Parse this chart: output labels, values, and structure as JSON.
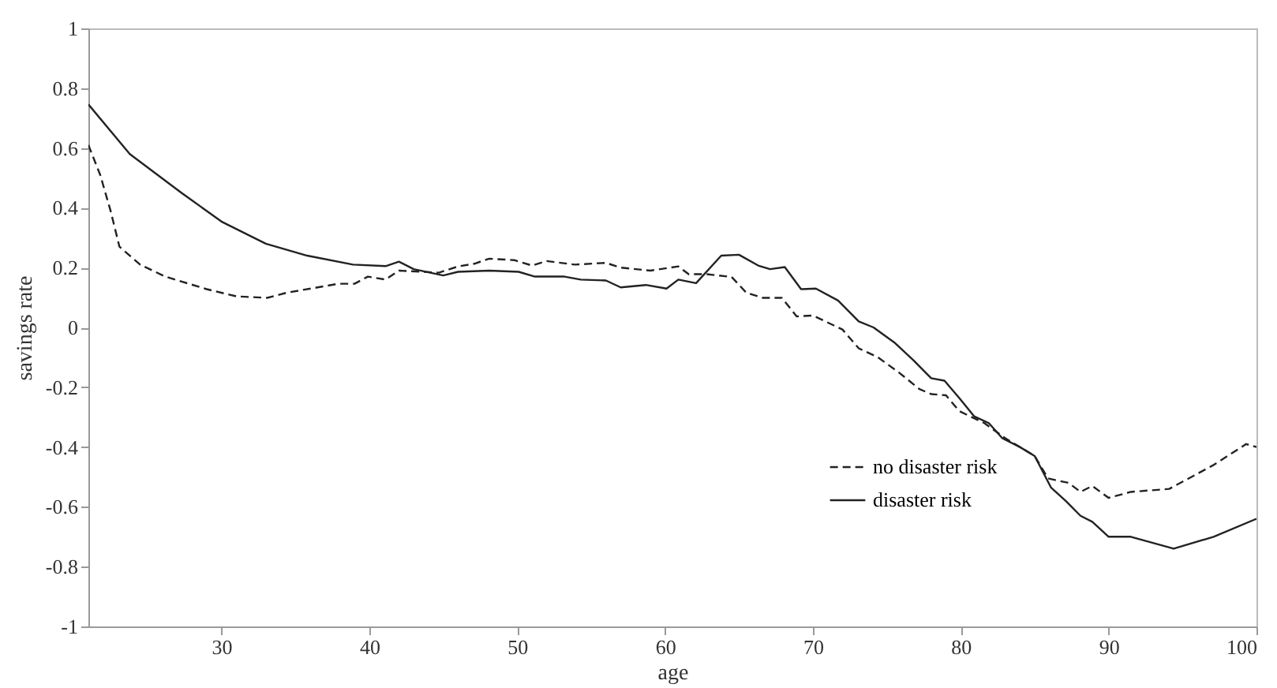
{
  "chart_data": {
    "type": "line",
    "xlabel": "age",
    "ylabel": "savings rate",
    "xlim": [
      21,
      100
    ],
    "ylim": [
      -1,
      1
    ],
    "xticks": [
      30,
      40,
      50,
      60,
      70,
      80,
      90,
      100
    ],
    "yticks": [
      -1,
      -0.8,
      -0.6,
      -0.4,
      -0.2,
      0,
      0.2,
      0.4,
      0.6,
      0.8,
      1
    ],
    "grid": false,
    "legend": "bottom right",
    "marker": "none",
    "series": [
      {
        "name": "no disaster risk",
        "color": "#222222",
        "line_style": "dashed",
        "x": [
          21,
          21.8,
          22.5,
          23.1,
          24.5,
          26.2,
          29,
          31,
          33.1,
          34.4,
          36.5,
          37.9,
          39,
          39.9,
          41.1,
          42,
          43.7,
          44.7,
          46,
          47.1,
          48.1,
          49.8,
          51,
          52,
          53.9,
          56,
          57,
          59,
          60.9,
          61.6,
          62.8,
          64.5,
          65.5,
          66.6,
          67.9,
          68.9,
          70,
          72,
          73.1,
          74.4,
          75.8,
          77.2,
          78,
          79,
          79.9,
          81.6,
          83,
          85,
          85.9,
          87.3,
          88.1,
          88.9,
          90,
          91.5,
          94.1,
          97.1,
          99.3,
          100
        ],
        "values": [
          0.61,
          0.51,
          0.39,
          0.27,
          0.21,
          0.17,
          0.128,
          0.104,
          0.099,
          0.116,
          0.134,
          0.146,
          0.146,
          0.17,
          0.16,
          0.19,
          0.186,
          0.183,
          0.204,
          0.213,
          0.23,
          0.225,
          0.207,
          0.222,
          0.21,
          0.216,
          0.2,
          0.19,
          0.204,
          0.178,
          0.178,
          0.169,
          0.116,
          0.099,
          0.099,
          0.037,
          0.04,
          -0.007,
          -0.07,
          -0.1,
          -0.15,
          -0.206,
          -0.223,
          -0.227,
          -0.28,
          -0.32,
          -0.37,
          -0.43,
          -0.505,
          -0.52,
          -0.55,
          -0.53,
          -0.57,
          -0.55,
          -0.54,
          -0.46,
          -0.39,
          -0.4
        ]
      },
      {
        "name": "disaster risk",
        "color": "#222222",
        "line_style": "solid",
        "x": [
          21,
          23.8,
          27.3,
          30,
          33,
          35.8,
          38.9,
          41.1,
          42,
          43,
          45,
          46,
          48.1,
          50.1,
          51.2,
          53.2,
          54.3,
          56,
          57,
          58.7,
          60.1,
          60.9,
          62.1,
          63.8,
          65,
          66.3,
          67.1,
          68.1,
          69.2,
          70.2,
          71.7,
          73.1,
          74.1,
          75.5,
          76.8,
          78,
          78.9,
          79.9,
          80.9,
          81.9,
          82.8,
          84,
          85,
          86.1,
          87.1,
          88.1,
          88.9,
          90,
          91.5,
          94.4,
          97.1,
          100
        ],
        "values": [
          0.746,
          0.58,
          0.45,
          0.354,
          0.28,
          0.24,
          0.21,
          0.205,
          0.22,
          0.195,
          0.174,
          0.186,
          0.19,
          0.186,
          0.17,
          0.17,
          0.16,
          0.157,
          0.134,
          0.142,
          0.13,
          0.16,
          0.148,
          0.24,
          0.243,
          0.207,
          0.195,
          0.202,
          0.128,
          0.13,
          0.09,
          0.02,
          0.0,
          -0.05,
          -0.11,
          -0.17,
          -0.178,
          -0.236,
          -0.297,
          -0.32,
          -0.37,
          -0.4,
          -0.43,
          -0.535,
          -0.58,
          -0.63,
          -0.65,
          -0.7,
          -0.7,
          -0.74,
          -0.7,
          -0.64
        ]
      }
    ]
  }
}
